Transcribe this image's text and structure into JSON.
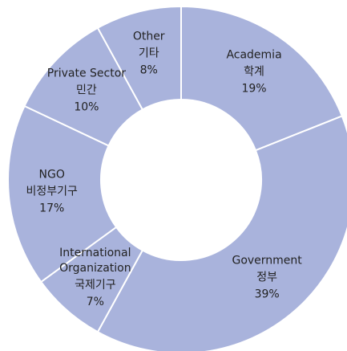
{
  "chart_data": {
    "type": "donut",
    "categories": [
      "Academia",
      "Government",
      "International Organization",
      "NGO",
      "Private Sector",
      "Other"
    ],
    "subcategories": [
      "학계",
      "정부",
      "국제기구",
      "비정부기구",
      "민간",
      "기타"
    ],
    "values": [
      19,
      39,
      7,
      17,
      10,
      8
    ],
    "value_labels": [
      "19%",
      "39%",
      "7%",
      "17%",
      "10%",
      "8%"
    ],
    "color": "#a9b3dc"
  }
}
